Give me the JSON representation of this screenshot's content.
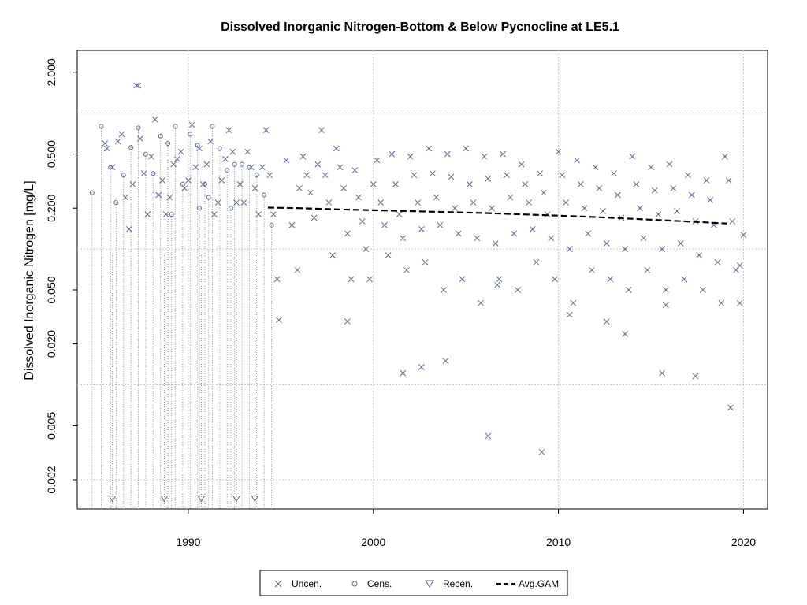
{
  "chart_data": {
    "type": "scatter",
    "title": "Dissolved Inorganic Nitrogen-Bottom & Below Pycnocline at LE5.1",
    "xlabel": "",
    "ylabel": "Dissolved Inorganic Nitrogen [mg/L]",
    "y_scale": "log",
    "xlim": [
      1984.0,
      2021.3
    ],
    "ylim": [
      0.00122,
      2.9
    ],
    "x_ticks": [
      1990,
      2000,
      2010,
      2020
    ],
    "x_tick_labels": [
      "1990",
      "2000",
      "2010",
      "2020"
    ],
    "y_ticks": [
      0.002,
      0.005,
      0.02,
      0.05,
      0.2,
      0.5,
      2.0
    ],
    "y_tick_labels": [
      "0.002",
      "0.005",
      "0.020",
      "0.050",
      "0.200",
      "0.500",
      "2.000"
    ],
    "grid": true,
    "legend_position": "bottom",
    "series": [
      {
        "name": "Uncen.",
        "marker": "x",
        "color": "#5a6b8c",
        "points": [
          [
            1985.5,
            0.6
          ],
          [
            1985.6,
            0.55
          ],
          [
            1985.9,
            0.4
          ],
          [
            1986.2,
            0.62
          ],
          [
            1986.4,
            0.7
          ],
          [
            1986.6,
            0.24
          ],
          [
            1986.8,
            0.14
          ],
          [
            1987.0,
            0.3
          ],
          [
            1987.2,
            1.6
          ],
          [
            1987.4,
            0.65
          ],
          [
            1987.6,
            0.36
          ],
          [
            1987.8,
            0.18
          ],
          [
            1988.0,
            0.48
          ],
          [
            1988.2,
            0.9
          ],
          [
            1988.4,
            0.25
          ],
          [
            1988.6,
            0.32
          ],
          [
            1988.8,
            0.18
          ],
          [
            1989.0,
            0.24
          ],
          [
            1989.2,
            0.42
          ],
          [
            1989.4,
            0.46
          ],
          [
            1989.6,
            0.52
          ],
          [
            1989.8,
            0.28
          ],
          [
            1990.0,
            0.32
          ],
          [
            1990.2,
            0.82
          ],
          [
            1990.4,
            0.4
          ],
          [
            1990.6,
            0.55
          ],
          [
            1990.8,
            0.3
          ],
          [
            1991.0,
            0.42
          ],
          [
            1991.2,
            0.62
          ],
          [
            1991.4,
            0.18
          ],
          [
            1991.6,
            0.22
          ],
          [
            1991.8,
            0.32
          ],
          [
            1992.0,
            0.46
          ],
          [
            1992.2,
            0.75
          ],
          [
            1992.4,
            0.52
          ],
          [
            1992.6,
            0.22
          ],
          [
            1992.8,
            0.3
          ],
          [
            1993.0,
            0.22
          ],
          [
            1993.2,
            0.52
          ],
          [
            1993.4,
            0.4
          ],
          [
            1993.6,
            0.28
          ],
          [
            1993.8,
            0.18
          ],
          [
            1994.0,
            0.4
          ],
          [
            1994.2,
            0.75
          ],
          [
            1994.4,
            0.35
          ],
          [
            1994.6,
            0.18
          ],
          [
            1994.8,
            0.06
          ],
          [
            1994.9,
            0.03
          ],
          [
            1995.3,
            0.45
          ],
          [
            1995.6,
            0.15
          ],
          [
            1995.9,
            0.07
          ],
          [
            1996.0,
            0.28
          ],
          [
            1996.2,
            0.48
          ],
          [
            1996.4,
            0.35
          ],
          [
            1996.6,
            0.26
          ],
          [
            1996.8,
            0.17
          ],
          [
            1997.0,
            0.42
          ],
          [
            1997.2,
            0.75
          ],
          [
            1997.4,
            0.35
          ],
          [
            1997.6,
            0.22
          ],
          [
            1997.8,
            0.09
          ],
          [
            1998.0,
            0.55
          ],
          [
            1998.2,
            0.4
          ],
          [
            1998.4,
            0.28
          ],
          [
            1998.6,
            0.13
          ],
          [
            1998.8,
            0.06
          ],
          [
            1999.0,
            0.38
          ],
          [
            1999.2,
            0.24
          ],
          [
            1999.4,
            0.16
          ],
          [
            1999.6,
            0.1
          ],
          [
            1999.8,
            0.06
          ],
          [
            2000.0,
            0.3
          ],
          [
            2000.2,
            0.45
          ],
          [
            2000.4,
            0.22
          ],
          [
            2000.6,
            0.15
          ],
          [
            2000.8,
            0.09
          ],
          [
            2001.0,
            0.5
          ],
          [
            2001.2,
            0.3
          ],
          [
            2001.4,
            0.18
          ],
          [
            2001.6,
            0.12
          ],
          [
            2001.8,
            0.07
          ],
          [
            2002.0,
            0.48
          ],
          [
            2002.2,
            0.35
          ],
          [
            2002.4,
            0.22
          ],
          [
            2002.6,
            0.14
          ],
          [
            2002.8,
            0.08
          ],
          [
            2003.0,
            0.55
          ],
          [
            2003.2,
            0.36
          ],
          [
            2003.4,
            0.24
          ],
          [
            2003.6,
            0.15
          ],
          [
            2003.8,
            0.05
          ],
          [
            2004.0,
            0.5
          ],
          [
            2004.2,
            0.34
          ],
          [
            2004.4,
            0.2
          ],
          [
            2004.6,
            0.13
          ],
          [
            2004.8,
            0.06
          ],
          [
            2005.0,
            0.55
          ],
          [
            2005.2,
            0.3
          ],
          [
            2005.4,
            0.22
          ],
          [
            2005.6,
            0.12
          ],
          [
            2005.8,
            0.04
          ],
          [
            2006.0,
            0.48
          ],
          [
            2006.2,
            0.33
          ],
          [
            2006.4,
            0.2
          ],
          [
            2006.6,
            0.11
          ],
          [
            2006.8,
            0.06
          ],
          [
            2007.0,
            0.5
          ],
          [
            2007.2,
            0.35
          ],
          [
            2007.4,
            0.24
          ],
          [
            2007.6,
            0.13
          ],
          [
            2007.8,
            0.05
          ],
          [
            2008.0,
            0.42
          ],
          [
            2008.2,
            0.3
          ],
          [
            2008.4,
            0.22
          ],
          [
            2008.6,
            0.14
          ],
          [
            2008.8,
            0.08
          ],
          [
            2009.0,
            0.36
          ],
          [
            2009.2,
            0.26
          ],
          [
            2009.4,
            0.18
          ],
          [
            2009.6,
            0.12
          ],
          [
            2009.8,
            0.06
          ],
          [
            2010.0,
            0.52
          ],
          [
            2010.2,
            0.35
          ],
          [
            2010.4,
            0.22
          ],
          [
            2010.6,
            0.1
          ],
          [
            2010.8,
            0.04
          ],
          [
            2011.0,
            0.45
          ],
          [
            2011.2,
            0.3
          ],
          [
            2011.4,
            0.2
          ],
          [
            2011.6,
            0.13
          ],
          [
            2011.8,
            0.07
          ],
          [
            2012.0,
            0.4
          ],
          [
            2012.2,
            0.28
          ],
          [
            2012.4,
            0.19
          ],
          [
            2012.6,
            0.11
          ],
          [
            2012.8,
            0.06
          ],
          [
            2013.0,
            0.36
          ],
          [
            2013.2,
            0.25
          ],
          [
            2013.4,
            0.17
          ],
          [
            2013.6,
            0.1
          ],
          [
            2013.8,
            0.05
          ],
          [
            2014.0,
            0.48
          ],
          [
            2014.2,
            0.3
          ],
          [
            2014.4,
            0.2
          ],
          [
            2014.6,
            0.12
          ],
          [
            2014.8,
            0.07
          ],
          [
            2015.0,
            0.4
          ],
          [
            2015.2,
            0.27
          ],
          [
            2015.4,
            0.18
          ],
          [
            2015.6,
            0.1
          ],
          [
            2015.8,
            0.05
          ],
          [
            2016.0,
            0.42
          ],
          [
            2016.2,
            0.28
          ],
          [
            2016.4,
            0.19
          ],
          [
            2016.6,
            0.11
          ],
          [
            2016.8,
            0.06
          ],
          [
            2017.0,
            0.35
          ],
          [
            2017.2,
            0.25
          ],
          [
            2017.4,
            0.16
          ],
          [
            2017.6,
            0.09
          ],
          [
            2017.8,
            0.05
          ],
          [
            2018.0,
            0.32
          ],
          [
            2018.2,
            0.23
          ],
          [
            2018.4,
            0.15
          ],
          [
            2018.6,
            0.08
          ],
          [
            2018.8,
            0.04
          ],
          [
            2019.0,
            0.48
          ],
          [
            2019.2,
            0.32
          ],
          [
            2019.4,
            0.16
          ],
          [
            2019.6,
            0.07
          ],
          [
            2019.8,
            0.04
          ],
          [
            1987.3,
            1.6
          ],
          [
            2003.9,
            0.015
          ],
          [
            2006.2,
            0.0042
          ],
          [
            2009.1,
            0.0032
          ],
          [
            2019.3,
            0.0068
          ],
          [
            2001.6,
            0.0122
          ],
          [
            2002.6,
            0.0135
          ],
          [
            2013.6,
            0.0237
          ],
          [
            2015.6,
            0.0122
          ],
          [
            2017.4,
            0.0116
          ],
          [
            1998.6,
            0.0293
          ],
          [
            2012.6,
            0.0292
          ],
          [
            2010.6,
            0.0328
          ],
          [
            2015.8,
            0.0386
          ],
          [
            2006.7,
            0.0545
          ],
          [
            2020.0,
            0.127
          ],
          [
            2019.8,
            0.0756
          ]
        ]
      },
      {
        "name": "Cens.",
        "marker": "o",
        "color": "#5a6b8c",
        "points": [
          [
            1984.8,
            0.26
          ],
          [
            1985.3,
            0.8
          ],
          [
            1985.8,
            0.4
          ],
          [
            1986.1,
            0.22
          ],
          [
            1986.5,
            0.35
          ],
          [
            1986.9,
            0.56
          ],
          [
            1987.3,
            0.78
          ],
          [
            1987.7,
            0.5
          ],
          [
            1988.1,
            0.36
          ],
          [
            1988.5,
            0.68
          ],
          [
            1988.9,
            0.6
          ],
          [
            1989.3,
            0.8
          ],
          [
            1989.7,
            0.3
          ],
          [
            1990.1,
            0.7
          ],
          [
            1990.5,
            0.58
          ],
          [
            1990.9,
            0.3
          ],
          [
            1991.3,
            0.8
          ],
          [
            1991.7,
            0.55
          ],
          [
            1992.1,
            0.38
          ],
          [
            1992.5,
            0.42
          ],
          [
            1992.9,
            0.42
          ],
          [
            1993.3,
            0.4
          ],
          [
            1993.7,
            0.35
          ],
          [
            1994.1,
            0.25
          ],
          [
            1994.5,
            0.15
          ],
          [
            1989.1,
            0.18
          ],
          [
            1990.6,
            0.2
          ],
          [
            1991.1,
            0.24
          ],
          [
            1992.3,
            0.2
          ]
        ]
      },
      {
        "name": "Recen.",
        "marker": "triangle-down",
        "color": "#5a6b8c",
        "points": [
          [
            1985.9,
            0.00146
          ],
          [
            1988.7,
            0.00146
          ],
          [
            1990.7,
            0.00146
          ],
          [
            1992.6,
            0.00146
          ],
          [
            1993.6,
            0.00146
          ]
        ]
      },
      {
        "name": "Avg.GAM",
        "marker": "dashed-line",
        "color": "#000000",
        "x": [
          1994.3,
          1996,
          1998,
          2000,
          2002,
          2004,
          2006,
          2008,
          2010,
          2012,
          2014,
          2016,
          2018,
          2019.1
        ],
        "y": [
          0.202,
          0.2,
          0.196,
          0.193,
          0.19,
          0.187,
          0.184,
          0.18,
          0.176,
          0.172,
          0.167,
          0.162,
          0.157,
          0.154
        ]
      }
    ],
    "censored_intervals_color": "#8a8a8a"
  }
}
